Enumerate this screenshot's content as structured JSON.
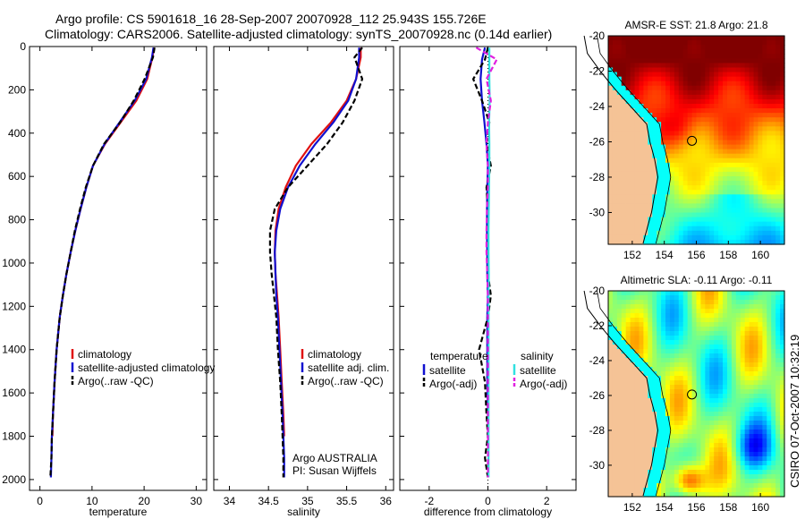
{
  "header": {
    "title_line1": "Argo profile: CS 5901618_16 28-Sep-2007 20070928_112 25.943S 155.726E",
    "title_line2": "Climatology: CARS2006. Satellite-adjusted climatology: synTS_20070928.nc (0.14d earlier)"
  },
  "side_label": "CSIRO 07-Oct-2007 10:32:19",
  "colors": {
    "climatology": "#e01010",
    "satellite": "#1010d0",
    "argo": "#000000",
    "satellite_salinity": "#30e0e0",
    "argo_salinity": "#e020e0",
    "land": "#f5c396"
  },
  "chart_data": [
    {
      "id": "temperature",
      "type": "line",
      "xlabel": "temperature",
      "ylabel": "",
      "xlim": [
        -2,
        32
      ],
      "ylim": [
        2050,
        0
      ],
      "xticks": [
        0,
        10,
        20,
        30
      ],
      "yticks": [
        0,
        200,
        400,
        600,
        800,
        1000,
        1200,
        1400,
        1600,
        1800,
        2000
      ],
      "legend": [
        "climatology",
        "satellite-adjusted climatology",
        "Argo(..raw -QC)"
      ],
      "series": [
        {
          "name": "climatology",
          "style": "climatology",
          "x": [
            21.9,
            21.6,
            20.6,
            18.5,
            15.5,
            12.5,
            10.2,
            8.9,
            7.8,
            6.8,
            5.9,
            5.1,
            4.4,
            3.8,
            3.2,
            2.8,
            2.5,
            2.4
          ],
          "y": [
            5,
            50,
            150,
            250,
            350,
            450,
            550,
            650,
            750,
            850,
            950,
            1050,
            1150,
            1250,
            1400,
            1550,
            1700,
            1800
          ]
        },
        {
          "name": "satellite-adjusted climatology",
          "style": "satellite",
          "x": [
            21.8,
            21.5,
            20.4,
            18.2,
            15.3,
            12.4,
            10.2,
            8.9,
            7.8,
            6.8,
            5.9,
            5.1,
            4.4,
            3.8,
            3.2,
            2.8,
            2.5,
            2.3,
            2.2,
            2.1
          ],
          "y": [
            5,
            50,
            150,
            250,
            350,
            450,
            550,
            650,
            750,
            850,
            950,
            1050,
            1150,
            1250,
            1400,
            1550,
            1700,
            1800,
            1900,
            1990
          ]
        },
        {
          "name": "Argo(..raw -QC)",
          "style": "argo",
          "x": [
            22.0,
            21.7,
            20.1,
            18.0,
            15.4,
            12.3,
            10.2,
            8.8,
            7.7,
            6.7,
            5.9,
            5.1,
            4.4,
            3.8,
            3.2,
            2.8,
            2.5,
            2.3,
            2.2,
            2.0
          ],
          "y": [
            5,
            50,
            150,
            250,
            350,
            450,
            550,
            650,
            750,
            850,
            950,
            1050,
            1150,
            1250,
            1400,
            1550,
            1700,
            1800,
            1900,
            1990
          ]
        }
      ]
    },
    {
      "id": "salinity",
      "type": "line",
      "xlabel": "salinity",
      "ylabel": "",
      "xlim": [
        33.8,
        36.1
      ],
      "ylim": [
        2050,
        0
      ],
      "xticks": [
        34,
        34.5,
        35,
        35.5,
        36
      ],
      "yticks": [],
      "legend": [
        "climatology",
        "satellite adj. clim.",
        "Argo(..raw -QC)"
      ],
      "annotation": [
        "Argo AUSTRALIA",
        "PI: Susan Wijffels"
      ],
      "series": [
        {
          "name": "climatology",
          "style": "climatology",
          "x": [
            35.68,
            35.68,
            35.62,
            35.5,
            35.3,
            35.05,
            34.85,
            34.72,
            34.63,
            34.59,
            34.58,
            34.59,
            34.61,
            34.63,
            34.65,
            34.67,
            34.69,
            34.7
          ],
          "y": [
            5,
            50,
            150,
            250,
            350,
            450,
            550,
            650,
            750,
            850,
            950,
            1050,
            1150,
            1250,
            1400,
            1550,
            1700,
            1800
          ]
        },
        {
          "name": "satellite adj. clim.",
          "style": "satellite",
          "x": [
            35.66,
            35.66,
            35.62,
            35.52,
            35.33,
            35.1,
            34.9,
            34.75,
            34.65,
            34.6,
            34.58,
            34.59,
            34.6,
            34.62,
            34.64,
            34.66,
            34.68,
            34.69,
            34.7,
            34.7
          ],
          "y": [
            5,
            50,
            150,
            250,
            350,
            450,
            550,
            650,
            750,
            850,
            950,
            1050,
            1150,
            1250,
            1400,
            1550,
            1700,
            1800,
            1900,
            1990
          ]
        },
        {
          "name": "Argo(..raw -QC)",
          "style": "argo",
          "x": [
            35.7,
            35.6,
            35.7,
            35.6,
            35.45,
            35.25,
            35.0,
            34.75,
            34.58,
            34.52,
            34.52,
            34.54,
            34.57,
            34.6,
            34.62,
            34.65,
            34.67,
            34.68,
            34.69,
            34.69
          ],
          "y": [
            5,
            50,
            150,
            250,
            350,
            450,
            550,
            650,
            750,
            850,
            950,
            1050,
            1150,
            1250,
            1400,
            1550,
            1700,
            1800,
            1900,
            1990
          ]
        }
      ]
    },
    {
      "id": "difference",
      "type": "line",
      "xlabel": "difference from climatology",
      "ylabel": "",
      "xlim": [
        -3,
        3
      ],
      "ylim": [
        2050,
        0
      ],
      "xticks": [
        -2,
        0,
        2
      ],
      "yticks": [],
      "legend_headers": [
        "temperature",
        "salinity"
      ],
      "legend": [
        "satellite",
        "Argo(-adj)",
        "satellite",
        "Argo(-adj)"
      ],
      "series": [
        {
          "name": "satellite",
          "style": "satellite",
          "x": [
            -0.1,
            -0.2,
            -0.25,
            -0.2,
            -0.12,
            -0.05,
            0.0,
            -0.02,
            -0.03,
            -0.03,
            -0.02,
            -0.02,
            0.0,
            -0.02,
            -0.02,
            -0.02,
            0.0,
            0.0
          ],
          "y": [
            5,
            60,
            150,
            250,
            350,
            450,
            550,
            650,
            750,
            850,
            950,
            1050,
            1150,
            1250,
            1400,
            1550,
            1700,
            1800
          ]
        },
        {
          "name": "Argo(-adj)",
          "style": "argo",
          "x": [
            0.0,
            -0.1,
            -0.5,
            -0.2,
            0.05,
            -0.05,
            0.1,
            -0.05,
            0.0,
            0.0,
            0.0,
            0.0,
            0.1,
            0.0,
            -0.3,
            -0.1,
            -0.05,
            0.0,
            -0.1,
            0.0
          ],
          "y": [
            5,
            60,
            150,
            250,
            350,
            450,
            550,
            650,
            750,
            850,
            950,
            1050,
            1150,
            1250,
            1400,
            1550,
            1700,
            1800,
            1900,
            1990
          ]
        },
        {
          "name": "satellite",
          "style": "satellite_salinity",
          "x": [
            0.05,
            0.05,
            0.05,
            0.06,
            0.04,
            0.05,
            0.05,
            0.04,
            0.03,
            0.02,
            0.02,
            0.03,
            0.02,
            0.02,
            0.02,
            0.02,
            0.02,
            0.02,
            0.02,
            0.02
          ],
          "y": [
            5,
            60,
            150,
            250,
            350,
            450,
            550,
            650,
            750,
            850,
            950,
            1050,
            1150,
            1250,
            1400,
            1550,
            1700,
            1800,
            1900,
            1990
          ]
        },
        {
          "name": "Argo(-adj)",
          "style": "argo_salinity",
          "x": [
            -0.4,
            0.3,
            -0.05,
            0.1,
            0.0,
            -0.05,
            0.0,
            0.0,
            -0.03,
            -0.05,
            -0.05,
            -0.02,
            0.0,
            0.0,
            0.0,
            0.0,
            0.0,
            0.0,
            0.0,
            0.0
          ],
          "y": [
            5,
            60,
            150,
            250,
            350,
            450,
            550,
            650,
            750,
            850,
            950,
            1050,
            1150,
            1250,
            1400,
            1550,
            1700,
            1800,
            1900,
            1990
          ]
        }
      ]
    },
    {
      "id": "sst_map",
      "type": "heatmap",
      "title": "AMSR-E SST: 21.8 Argo: 21.8",
      "xlim": [
        150.5,
        161.5
      ],
      "ylim": [
        -31.8,
        -20
      ],
      "xticks": [
        152,
        154,
        156,
        158,
        160
      ],
      "yticks": [
        -20,
        -22,
        -24,
        -26,
        -28,
        -30
      ],
      "xticklabels": [
        "152",
        "154",
        "156",
        "158",
        "160"
      ],
      "yticklabels": [
        "-20",
        "-22",
        "-24",
        "-26",
        "-28",
        "-30"
      ],
      "profile_location": [
        155.726,
        -25.943
      ]
    },
    {
      "id": "sla_map",
      "type": "heatmap",
      "title": "Altimetric SLA: -0.11 Argo: -0.11",
      "xlim": [
        150.5,
        161.5
      ],
      "ylim": [
        -31.8,
        -20
      ],
      "xticks": [
        152,
        154,
        156,
        158,
        160
      ],
      "yticks": [
        -20,
        -22,
        -24,
        -26,
        -28,
        -30
      ],
      "xticklabels": [
        "152",
        "154",
        "156",
        "158",
        "160"
      ],
      "yticklabels": [
        "-20",
        "-22",
        "-24",
        "-26",
        "-28",
        "-30"
      ],
      "profile_location": [
        155.726,
        -25.943
      ]
    }
  ]
}
